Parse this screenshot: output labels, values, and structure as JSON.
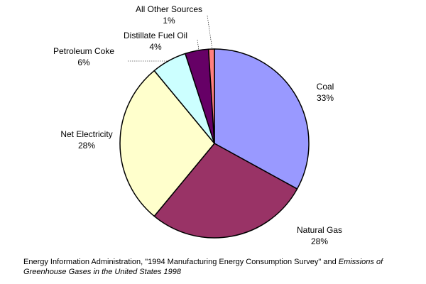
{
  "chart_data": {
    "type": "pie",
    "slices": [
      {
        "name": "Coal",
        "value": 33,
        "label": "33%",
        "color": "#9999FF"
      },
      {
        "name": "Natural Gas",
        "value": 28,
        "label": "28%",
        "color": "#993366"
      },
      {
        "name": "Net Electricity",
        "value": 28,
        "label": "28%",
        "color": "#FFFFCC"
      },
      {
        "name": "Petroleum Coke",
        "value": 6,
        "label": "6%",
        "color": "#CCFFFF"
      },
      {
        "name": "Distillate Fuel Oil",
        "value": 4,
        "label": "4%",
        "color": "#660066"
      },
      {
        "name": "All Other Sources",
        "value": 1,
        "label": "1%",
        "color": "#FF8080"
      }
    ],
    "start_angle": "12 o'clock",
    "direction": "clockwise",
    "outline_color": "#000000"
  },
  "source": {
    "text_1": "Energy Information Administration, \"1994 Manufacturing Energy Consumption Survey\" and ",
    "emph_1": "Emissions of Greenhouse Gases in the United States 1998"
  }
}
